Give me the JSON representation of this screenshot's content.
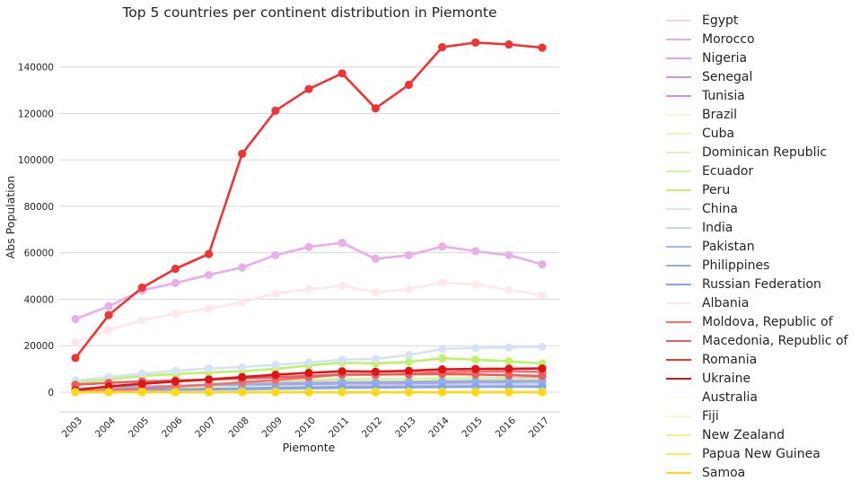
{
  "chart_data": {
    "type": "line",
    "title": "Top 5 countries per continent distribution in Piemonte",
    "xlabel": "Piemonte",
    "ylabel": "Abs Population",
    "ylim": [
      -8500,
      158000
    ],
    "yticks": [
      0,
      20000,
      40000,
      60000,
      80000,
      100000,
      120000,
      140000
    ],
    "grid": "horizontal",
    "legend_placement": "right, outside plot",
    "categories": [
      "2003",
      "2004",
      "2005",
      "2006",
      "2007",
      "2008",
      "2009",
      "2010",
      "2011",
      "2012",
      "2013",
      "2014",
      "2015",
      "2016",
      "2017"
    ],
    "series": [
      {
        "name": "Egypt",
        "color": "#f4cff0",
        "values": [
          600,
          1000,
          1300,
          1700,
          2000,
          2400,
          2800,
          3100,
          3300,
          3200,
          3400,
          3500,
          3600,
          3500,
          3400
        ]
      },
      {
        "name": "Morocco",
        "color": "#e7aee8",
        "values": [
          31500,
          37000,
          43800,
          47000,
          50500,
          53700,
          59000,
          62500,
          64300,
          57400,
          59000,
          62700,
          60700,
          59000,
          55000
        ]
      },
      {
        "name": "Nigeria",
        "color": "#e4a0e8",
        "values": [
          700,
          1500,
          2200,
          2800,
          3300,
          3800,
          4300,
          4800,
          5500,
          5400,
          5600,
          5800,
          6000,
          6000,
          6200
        ]
      },
      {
        "name": "Senegal",
        "color": "#db90dc",
        "values": [
          600,
          1100,
          1600,
          2000,
          2400,
          2800,
          3100,
          3400,
          3700,
          3700,
          3800,
          3900,
          4000,
          4000,
          4000
        ]
      },
      {
        "name": "Tunisia",
        "color": "#e08ae0",
        "values": [
          900,
          1400,
          1900,
          2300,
          2700,
          3100,
          3500,
          3900,
          4200,
          4300,
          4500,
          4600,
          4700,
          4600,
          4500
        ]
      },
      {
        "name": "Brazil",
        "color": "#ecfad4",
        "values": [
          600,
          1000,
          1500,
          2000,
          2500,
          3100,
          3600,
          4100,
          4600,
          4700,
          4900,
          5000,
          5000,
          4900,
          4700
        ]
      },
      {
        "name": "Cuba",
        "color": "#e6f7c0",
        "values": [
          500,
          800,
          1100,
          1400,
          1700,
          2000,
          2300,
          2500,
          2700,
          2700,
          2800,
          2900,
          2900,
          2900,
          2800
        ]
      },
      {
        "name": "Dominican Republic",
        "color": "#dff6b6",
        "values": [
          400,
          600,
          900,
          1100,
          1300,
          1500,
          1700,
          1900,
          2100,
          2100,
          2200,
          2300,
          2300,
          2300,
          2200
        ]
      },
      {
        "name": "Ecuador",
        "color": "#d5f59c",
        "values": [
          600,
          1200,
          2100,
          2800,
          3500,
          4200,
          4900,
          5400,
          5800,
          5700,
          5800,
          5900,
          5900,
          5800,
          5600
        ]
      },
      {
        "name": "Peru",
        "color": "#bdf26a",
        "values": [
          4000,
          5500,
          7000,
          7800,
          8500,
          9000,
          10000,
          11500,
          12800,
          12400,
          13000,
          14600,
          14000,
          13300,
          12300
        ]
      },
      {
        "name": "China",
        "color": "#d6e3f7",
        "values": [
          5000,
          6500,
          8000,
          9200,
          10200,
          10800,
          11800,
          12800,
          14000,
          14300,
          16000,
          18600,
          19100,
          19200,
          19500
        ]
      },
      {
        "name": "India",
        "color": "#c3d6f5",
        "values": [
          300,
          500,
          800,
          1000,
          1300,
          1600,
          1900,
          2200,
          2500,
          2600,
          2800,
          3100,
          3300,
          3400,
          3500
        ]
      },
      {
        "name": "Pakistan",
        "color": "#9bbcee",
        "values": [
          200,
          400,
          600,
          800,
          1000,
          1200,
          1400,
          1600,
          1800,
          1900,
          2000,
          2200,
          2300,
          2400,
          2500
        ]
      },
      {
        "name": "Philippines",
        "color": "#8fb2e6",
        "values": [
          1600,
          2000,
          2400,
          2700,
          3000,
          3300,
          3600,
          3900,
          4200,
          4300,
          4400,
          4600,
          4700,
          4800,
          4800
        ]
      },
      {
        "name": "Russian Federation",
        "color": "#84a7ea",
        "values": [
          400,
          700,
          1000,
          1200,
          1400,
          1600,
          1800,
          2000,
          2200,
          2200,
          2300,
          2400,
          2400,
          2400,
          2300
        ]
      },
      {
        "name": "Albania",
        "color": "#fde8ea",
        "values": [
          21500,
          26700,
          31000,
          33800,
          36000,
          38700,
          42500,
          44300,
          45800,
          43000,
          44300,
          47200,
          46400,
          44000,
          41800
        ]
      },
      {
        "name": "Moldova, Republic of",
        "color": "#f37070",
        "values": [
          400,
          900,
          1600,
          2400,
          3200,
          4200,
          5200,
          6400,
          7600,
          7500,
          8000,
          8600,
          8900,
          9000,
          8700
        ]
      },
      {
        "name": "Macedonia, Republic of",
        "color": "#ec5e5e",
        "values": [
          3200,
          4000,
          4600,
          5000,
          5400,
          5900,
          6400,
          7000,
          7600,
          7600,
          7700,
          7800,
          7600,
          7300,
          7000
        ]
      },
      {
        "name": "Romania",
        "color": "#f03434",
        "values": [
          14700,
          33200,
          45000,
          53100,
          59500,
          102600,
          121200,
          130500,
          137200,
          122200,
          132300,
          148500,
          150500,
          149700,
          148300
        ]
      },
      {
        "name": "Ukraine",
        "color": "#e01414",
        "values": [
          800,
          2500,
          3600,
          4600,
          5500,
          6500,
          7500,
          8300,
          9000,
          8800,
          9200,
          9800,
          10000,
          10100,
          10200
        ]
      },
      {
        "name": "Australia",
        "color": "#fffbe8",
        "values": [
          60,
          70,
          80,
          90,
          100,
          110,
          120,
          130,
          140,
          140,
          150,
          150,
          150,
          150,
          150
        ]
      },
      {
        "name": "Fiji",
        "color": "#fff5cd",
        "values": [
          20,
          25,
          30,
          35,
          40,
          45,
          50,
          55,
          60,
          60,
          60,
          60,
          60,
          60,
          60
        ]
      },
      {
        "name": "New Zealand",
        "color": "#ffee90",
        "values": [
          30,
          35,
          40,
          45,
          50,
          55,
          60,
          65,
          70,
          70,
          70,
          70,
          70,
          70,
          70
        ]
      },
      {
        "name": "Papua New Guinea",
        "color": "#ffe565",
        "values": [
          5,
          5,
          5,
          5,
          5,
          5,
          5,
          5,
          5,
          5,
          5,
          5,
          5,
          5,
          5
        ]
      },
      {
        "name": "Samoa",
        "color": "#ffd814",
        "values": [
          10,
          10,
          10,
          10,
          10,
          10,
          10,
          10,
          10,
          10,
          10,
          10,
          10,
          10,
          10
        ]
      }
    ]
  }
}
